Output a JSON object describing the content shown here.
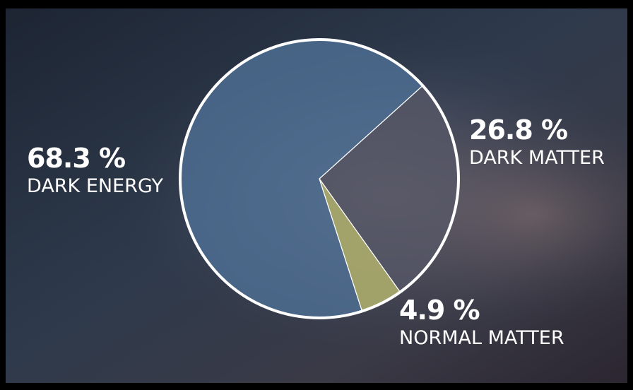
{
  "chart_data": {
    "type": "pie",
    "categories": [
      "DARK ENERGY",
      "DARK MATTER",
      "NORMAL MATTER"
    ],
    "values": [
      68.3,
      26.8,
      4.9
    ],
    "value_labels": [
      "68.3 %",
      "26.8 %",
      "4.9 %"
    ],
    "colors": [
      "#4f7196",
      "#565866",
      "#a7a66c"
    ]
  }
}
